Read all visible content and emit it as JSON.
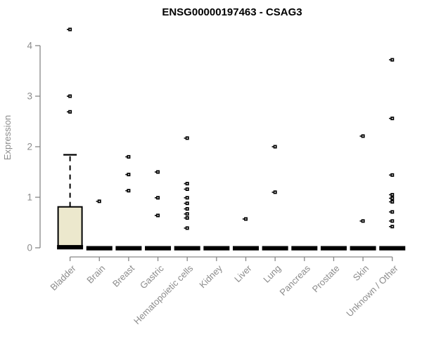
{
  "chart_data": {
    "type": "boxplot",
    "title": "ENSG00000197463 - CSAG3",
    "xlabel": "",
    "ylabel": "Expression",
    "ylim": [
      0,
      4
    ],
    "yticks": [
      0,
      1,
      2,
      3,
      4
    ],
    "grid": false,
    "legend": "none",
    "categories": [
      "Bladder",
      "Brain",
      "Breast",
      "Gastric",
      "Hematopoietic cells",
      "Kidney",
      "Liver",
      "Lung",
      "Pancreas",
      "Prostate",
      "Skin",
      "Unknown / Other"
    ],
    "series": [
      {
        "category": "Bladder",
        "q1": 0,
        "median": 0.02,
        "q3": 0.81,
        "whisker_low": 0,
        "whisker_high": 1.84,
        "outliers": [
          2.69,
          3.0,
          4.32
        ]
      },
      {
        "category": "Brain",
        "q1": 0,
        "median": 0,
        "q3": 0,
        "whisker_low": 0,
        "whisker_high": 0,
        "outliers": [
          0.92
        ]
      },
      {
        "category": "Breast",
        "q1": 0,
        "median": 0,
        "q3": 0,
        "whisker_low": 0,
        "whisker_high": 0,
        "outliers": [
          1.13,
          1.45,
          1.8
        ]
      },
      {
        "category": "Gastric",
        "q1": 0,
        "median": 0,
        "q3": 0,
        "whisker_low": 0,
        "whisker_high": 0,
        "outliers": [
          0.64,
          0.99,
          1.5
        ]
      },
      {
        "category": "Hematopoietic cells",
        "q1": 0,
        "median": 0,
        "q3": 0,
        "whisker_low": 0,
        "whisker_high": 0,
        "outliers": [
          0.39,
          0.59,
          0.67,
          0.77,
          0.88,
          0.99,
          1.16,
          1.27,
          2.17
        ]
      },
      {
        "category": "Kidney",
        "q1": 0,
        "median": 0,
        "q3": 0,
        "whisker_low": 0,
        "whisker_high": 0,
        "outliers": []
      },
      {
        "category": "Liver",
        "q1": 0,
        "median": 0,
        "q3": 0,
        "whisker_low": 0,
        "whisker_high": 0,
        "outliers": [
          0.57
        ]
      },
      {
        "category": "Lung",
        "q1": 0,
        "median": 0,
        "q3": 0,
        "whisker_low": 0,
        "whisker_high": 0,
        "outliers": [
          1.1,
          2.0
        ]
      },
      {
        "category": "Pancreas",
        "q1": 0,
        "median": 0,
        "q3": 0,
        "whisker_low": 0,
        "whisker_high": 0,
        "outliers": []
      },
      {
        "category": "Prostate",
        "q1": 0,
        "median": 0,
        "q3": 0,
        "whisker_low": 0,
        "whisker_high": 0,
        "outliers": []
      },
      {
        "category": "Skin",
        "q1": 0,
        "median": 0,
        "q3": 0,
        "whisker_low": 0,
        "whisker_high": 0,
        "outliers": [
          0.53,
          2.21
        ]
      },
      {
        "category": "Unknown / Other",
        "q1": 0,
        "median": 0,
        "q3": 0,
        "whisker_low": 0,
        "whisker_high": 0,
        "outliers": [
          0.42,
          0.53,
          0.71,
          0.91,
          0.98,
          1.05,
          1.44,
          2.56,
          3.72
        ]
      }
    ],
    "colors": {
      "background": "#ffffff",
      "box_fill": "#ece8cd",
      "box_border": "#000000",
      "median": "#000000",
      "point": "#000000",
      "axis": "#878787",
      "axis_text": "#8c8c8c",
      "title": "#000000"
    }
  }
}
